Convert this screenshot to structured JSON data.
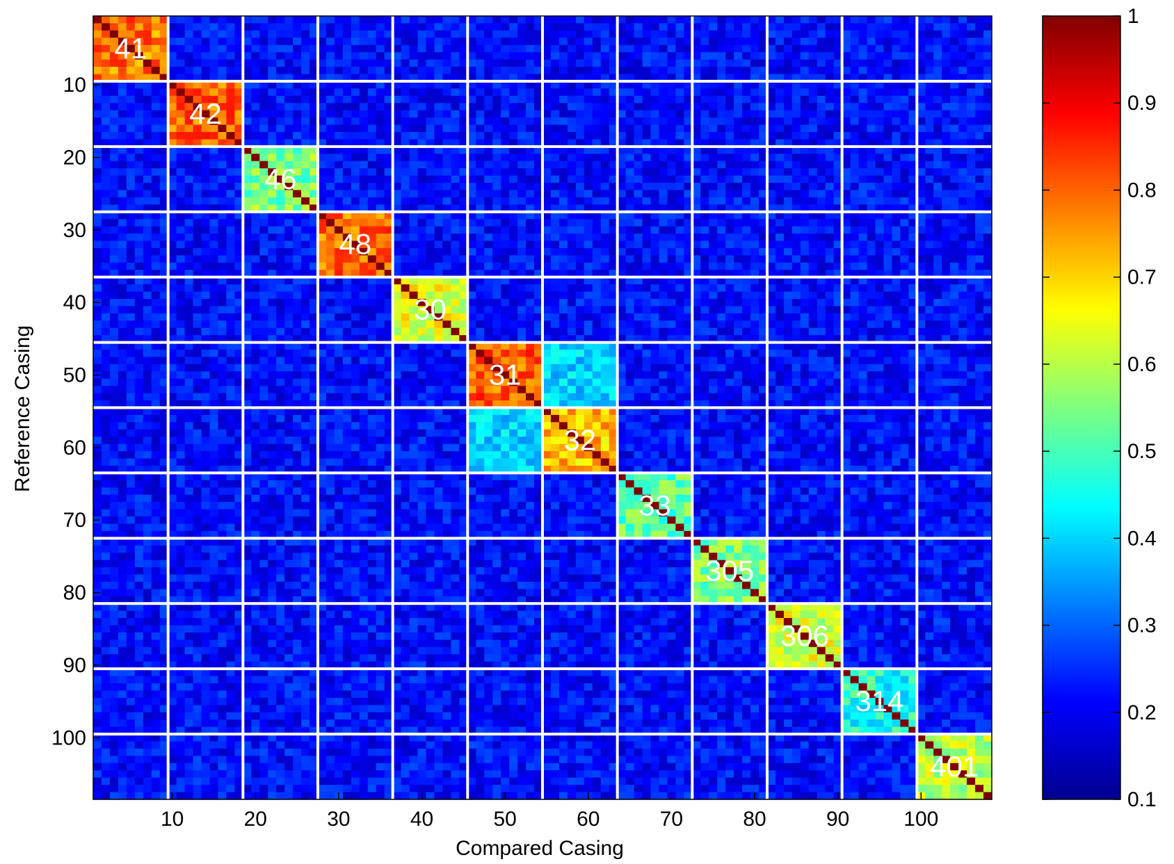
{
  "chart_data": {
    "type": "heatmap",
    "title": "",
    "xlabel": "Compared Casing",
    "ylabel": "Reference Casing",
    "size": 108,
    "x_range": [
      1,
      108
    ],
    "y_range": [
      1,
      108
    ],
    "y_axis_direction": "top-to-bottom",
    "x_ticks": [
      10,
      20,
      30,
      40,
      50,
      60,
      70,
      80,
      90,
      100
    ],
    "y_ticks": [
      10,
      20,
      30,
      40,
      50,
      60,
      70,
      80,
      90,
      100
    ],
    "colormap": "jet",
    "colorbar": {
      "min": 0.1,
      "max": 1,
      "ticks": [
        0.1,
        0.2,
        0.3,
        0.4,
        0.5,
        0.6,
        0.7,
        0.8,
        0.9,
        1
      ],
      "tick_labels": [
        "0.1",
        "0.2",
        "0.3",
        "0.4",
        "0.5",
        "0.6",
        "0.7",
        "0.8",
        "0.9",
        "1"
      ],
      "placement": "right"
    },
    "separator_color": "#ffffff",
    "groups": [
      {
        "label": "41",
        "start": 1,
        "end": 9,
        "mean_similarity": 0.78
      },
      {
        "label": "42",
        "start": 10,
        "end": 18,
        "mean_similarity": 0.8
      },
      {
        "label": "46",
        "start": 19,
        "end": 27,
        "mean_similarity": 0.55
      },
      {
        "label": "48",
        "start": 28,
        "end": 36,
        "mean_similarity": 0.79
      },
      {
        "label": "30",
        "start": 37,
        "end": 45,
        "mean_similarity": 0.64
      },
      {
        "label": "31",
        "start": 46,
        "end": 54,
        "mean_similarity": 0.81
      },
      {
        "label": "32",
        "start": 55,
        "end": 63,
        "mean_similarity": 0.72
      },
      {
        "label": "33",
        "start": 64,
        "end": 72,
        "mean_similarity": 0.52
      },
      {
        "label": "305",
        "start": 73,
        "end": 81,
        "mean_similarity": 0.55
      },
      {
        "label": "306",
        "start": 82,
        "end": 90,
        "mean_similarity": 0.63
      },
      {
        "label": "314",
        "start": 91,
        "end": 99,
        "mean_similarity": 0.46
      },
      {
        "label": "401",
        "start": 100,
        "end": 108,
        "mean_similarity": 0.6
      }
    ],
    "diagonal_value": 1,
    "off_block_mean_similarity": 0.22,
    "cross_blocks": [
      {
        "rows": [
          46,
          54
        ],
        "cols": [
          55,
          63
        ],
        "mean_similarity": 0.4
      },
      {
        "rows": [
          55,
          63
        ],
        "cols": [
          46,
          54
        ],
        "mean_similarity": 0.4
      }
    ]
  }
}
